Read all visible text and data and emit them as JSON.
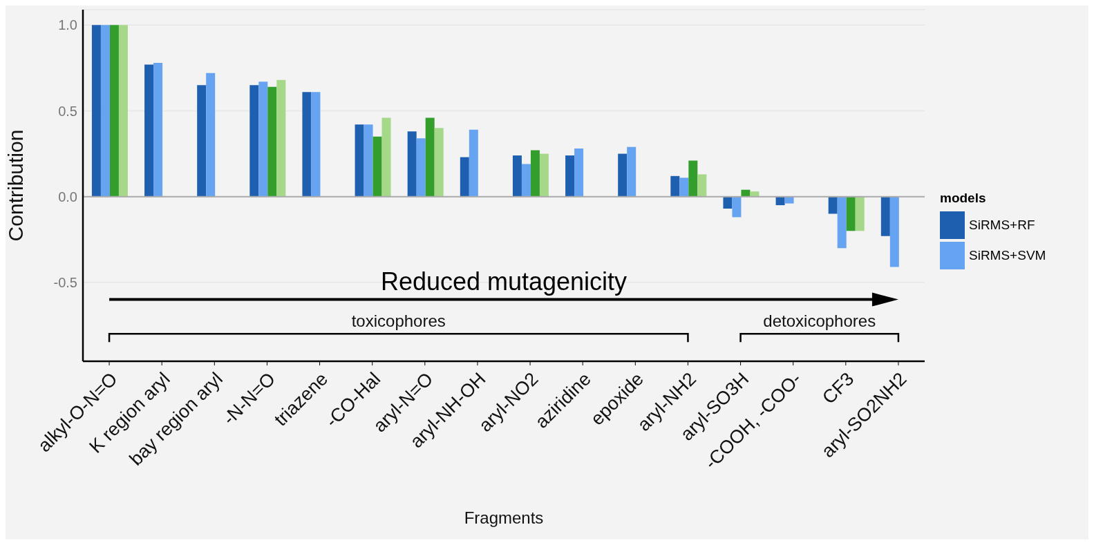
{
  "chart_data": {
    "type": "bar",
    "xlabel": "Fragments",
    "ylabel": "Contribution",
    "legend_title": "models",
    "categories": [
      "alkyl-O-N=O",
      "K region aryl",
      "bay region aryl",
      "-N-N=O",
      "triazene",
      "-CO-Hal",
      "aryl-N=O",
      "aryl-NH-OH",
      "aryl-NO2",
      "aziridine",
      "epoxide",
      "aryl-NH2",
      "aryl-SO3H",
      "-COOH, -COO-",
      "CF3",
      "aryl-SO2NH2"
    ],
    "series": [
      {
        "name": "SiRMS+RF",
        "color": "#1f5fb0",
        "values": [
          1,
          0.77,
          0.65,
          0.65,
          0.61,
          0.42,
          0.38,
          0.23,
          0.24,
          0.24,
          0.25,
          0.12,
          -0.07,
          -0.05,
          -0.1,
          -0.23
        ]
      },
      {
        "name": "SiRMS+SVM",
        "color": "#66a3f0",
        "values": [
          1,
          0.78,
          0.72,
          0.67,
          0.61,
          0.42,
          0.34,
          0.39,
          0.19,
          0.28,
          0.29,
          0.11,
          -0.12,
          -0.04,
          -0.3,
          -0.41
        ]
      },
      {
        "color": "#339e2c",
        "values": [
          1,
          null,
          null,
          0.64,
          null,
          0.35,
          0.46,
          null,
          0.27,
          null,
          null,
          0.21,
          0.04,
          null,
          -0.2,
          null
        ]
      },
      {
        "color": "#a6d88a",
        "values": [
          1,
          null,
          null,
          0.68,
          null,
          0.46,
          0.4,
          null,
          0.25,
          null,
          null,
          0.13,
          0.03,
          null,
          -0.2,
          null
        ]
      }
    ],
    "ylim": [
      -0.96,
      1.09
    ],
    "yticks": [
      -0.5,
      {
        "value": 0,
        "label": "0.0"
      },
      0.5,
      {
        "value": 1,
        "label": "1.0"
      }
    ],
    "grid": "y",
    "legend": "right",
    "ref_lines": [
      {
        "axis": "y",
        "value": 0,
        "color": "#aaaaaa"
      }
    ],
    "annotations": [
      "Reduced mutagenicity",
      "toxicophores",
      "detoxicophores"
    ]
  }
}
